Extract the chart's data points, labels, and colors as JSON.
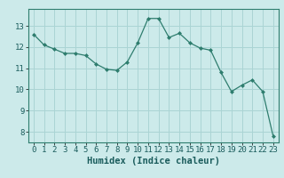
{
  "x": [
    0,
    1,
    2,
    3,
    4,
    5,
    6,
    7,
    8,
    9,
    10,
    11,
    12,
    13,
    14,
    15,
    16,
    17,
    18,
    19,
    20,
    21,
    22,
    23
  ],
  "y": [
    12.6,
    12.1,
    11.9,
    11.7,
    11.7,
    11.6,
    11.2,
    10.95,
    10.9,
    11.3,
    12.2,
    13.35,
    13.35,
    12.45,
    12.65,
    12.2,
    11.95,
    11.85,
    10.8,
    9.9,
    10.2,
    10.45,
    9.9,
    7.8
  ],
  "line_color": "#2e7d6e",
  "marker": "D",
  "marker_size": 2,
  "bg_color": "#cceaea",
  "grid_color": "#aad4d4",
  "xlabel": "Humidex (Indice chaleur)",
  "ylim": [
    7.5,
    13.8
  ],
  "xlim": [
    -0.5,
    23.5
  ],
  "yticks": [
    8,
    9,
    10,
    11,
    12,
    13
  ],
  "xticks": [
    0,
    1,
    2,
    3,
    4,
    5,
    6,
    7,
    8,
    9,
    10,
    11,
    12,
    13,
    14,
    15,
    16,
    17,
    18,
    19,
    20,
    21,
    22,
    23
  ],
  "tick_fontsize": 6.5,
  "xlabel_fontsize": 7.5
}
